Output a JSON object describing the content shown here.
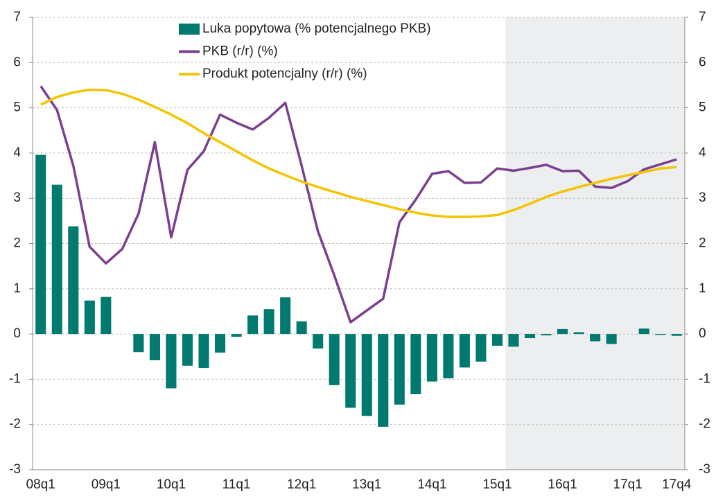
{
  "chart_data": {
    "type": "bar-line",
    "categories": [
      "08q1",
      null,
      null,
      null,
      "09q1",
      null,
      null,
      null,
      "10q1",
      null,
      null,
      null,
      "11q1",
      null,
      null,
      null,
      "12q1",
      null,
      null,
      null,
      "13q1",
      null,
      null,
      null,
      "14q1",
      null,
      null,
      null,
      "15q1",
      null,
      null,
      null,
      "16q1",
      null,
      null,
      null,
      "17q1",
      null,
      null,
      "17q4"
    ],
    "series": [
      {
        "name": "Luka popytowa (% potencjalnego PKB)",
        "kind": "bar",
        "color": "#00796f",
        "values": [
          3.96,
          3.3,
          2.38,
          0.74,
          0.82,
          0.0,
          -0.4,
          -0.58,
          -1.2,
          -0.7,
          -0.75,
          -0.41,
          -0.06,
          0.41,
          0.55,
          0.81,
          0.28,
          -0.32,
          -1.13,
          -1.63,
          -1.81,
          -2.05,
          -1.56,
          -1.33,
          -1.05,
          -0.98,
          -0.74,
          -0.61,
          -0.26,
          -0.28,
          -0.09,
          -0.03,
          0.11,
          0.04,
          -0.16,
          -0.22,
          0.0,
          0.12,
          -0.02,
          -0.04
        ]
      },
      {
        "name": "PKB (r/r) (%)",
        "kind": "line",
        "color": "#7b3f8f",
        "values": [
          5.48,
          4.95,
          3.72,
          1.93,
          1.56,
          1.88,
          2.66,
          4.24,
          2.14,
          3.63,
          4.04,
          4.85,
          4.67,
          4.52,
          4.78,
          5.11,
          3.72,
          2.27,
          1.3,
          0.26,
          0.52,
          0.78,
          2.47,
          2.97,
          3.54,
          3.6,
          3.34,
          3.35,
          3.66,
          3.61,
          3.67,
          3.74,
          3.6,
          3.61,
          3.26,
          3.23,
          3.38,
          3.64,
          3.75,
          3.86
        ]
      },
      {
        "name": "Produkt potencjalny (r/r) (%)",
        "kind": "line",
        "color": "#f5c400",
        "values": [
          5.07,
          5.24,
          5.34,
          5.4,
          5.39,
          5.31,
          5.18,
          5.02,
          4.85,
          4.66,
          4.44,
          4.24,
          4.04,
          3.84,
          3.66,
          3.51,
          3.37,
          3.25,
          3.14,
          3.03,
          2.94,
          2.85,
          2.76,
          2.68,
          2.62,
          2.59,
          2.59,
          2.6,
          2.63,
          2.74,
          2.88,
          3.03,
          3.15,
          3.25,
          3.34,
          3.43,
          3.51,
          3.58,
          3.66,
          3.69
        ]
      }
    ],
    "ylim": [
      -3,
      7
    ],
    "yticks": [
      -3,
      -2,
      -1,
      0,
      1,
      2,
      3,
      4,
      5,
      6,
      7
    ],
    "y2lim": [
      -3,
      7
    ],
    "y2ticks": [
      -3,
      -2,
      -1,
      0,
      1,
      2,
      3,
      4,
      5,
      6,
      7
    ],
    "grid": true,
    "shade_color": "#eceef0"
  }
}
